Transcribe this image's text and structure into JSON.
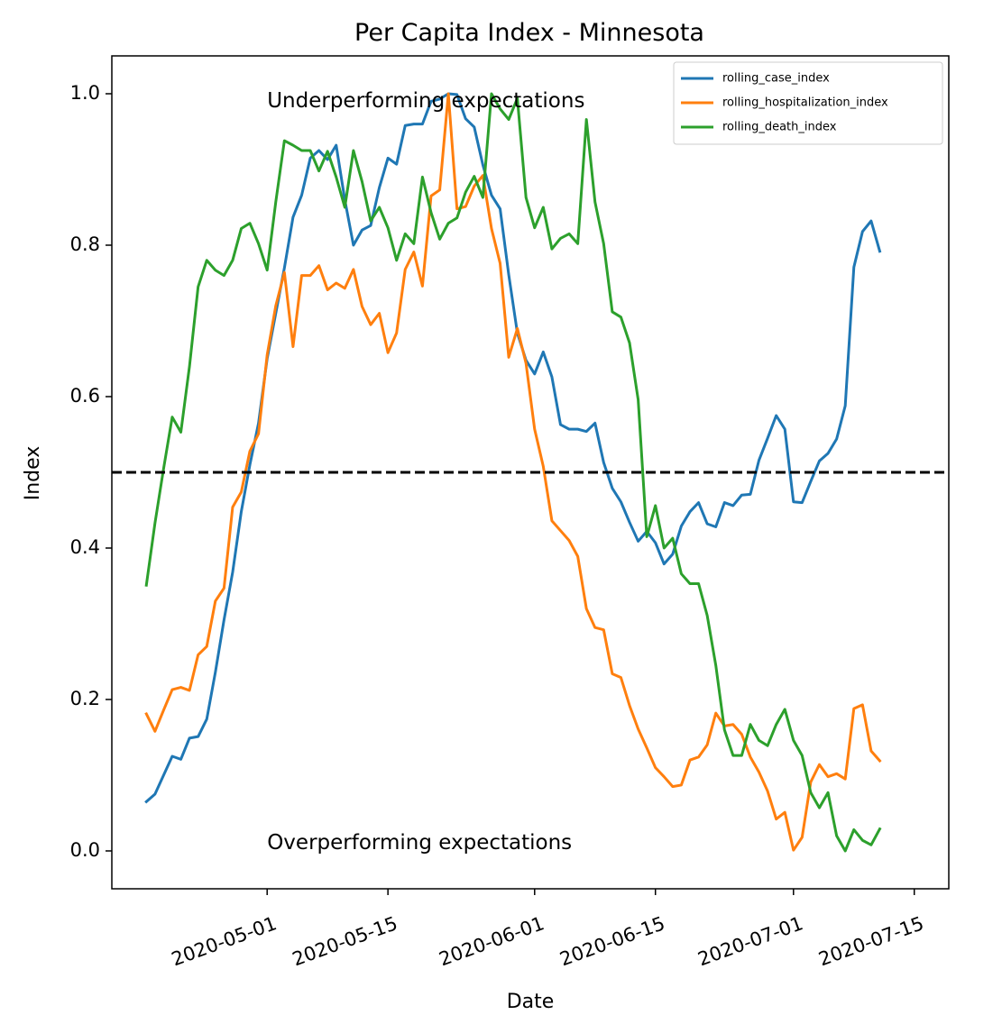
{
  "chart_data": {
    "type": "line",
    "title": "Per Capita Index - Minnesota",
    "xlabel": "Date",
    "ylabel": "Index",
    "x_start": "2020-04-17",
    "x_step_days": 1,
    "xlim": [
      "2020-04-13",
      "2020-07-19"
    ],
    "ylim": [
      -0.05,
      1.05
    ],
    "x_ticks": [
      "2020-05-01",
      "2020-05-15",
      "2020-06-01",
      "2020-06-15",
      "2020-07-01",
      "2020-07-15"
    ],
    "y_ticks": [
      0.0,
      0.2,
      0.4,
      0.6,
      0.8,
      1.0
    ],
    "y_tick_labels": [
      "0.0",
      "0.2",
      "0.4",
      "0.6",
      "0.8",
      "1.0"
    ],
    "grid": false,
    "legend_position": "top-right",
    "reference_line": {
      "y": 0.5,
      "style": "dashed",
      "color": "#000000"
    },
    "annotations": [
      {
        "text": "Underperforming expectations",
        "x": "2020-05-01",
        "y": 0.99
      },
      {
        "text": "Overperforming expectations",
        "x": "2020-05-01",
        "y": 0.01
      }
    ],
    "series": [
      {
        "name": "rolling_case_index",
        "color": "#1f77b4",
        "values": [
          0.065,
          0.075,
          0.1,
          0.125,
          0.121,
          0.149,
          0.151,
          0.174,
          0.236,
          0.305,
          0.368,
          0.448,
          0.51,
          0.565,
          0.65,
          0.71,
          0.77,
          0.837,
          0.866,
          0.915,
          0.925,
          0.913,
          0.932,
          0.86,
          0.8,
          0.82,
          0.826,
          0.876,
          0.915,
          0.907,
          0.958,
          0.96,
          0.96,
          0.99,
          0.993,
          1.0,
          0.999,
          0.967,
          0.956,
          0.906,
          0.866,
          0.848,
          0.761,
          0.684,
          0.648,
          0.63,
          0.659,
          0.626,
          0.563,
          0.557,
          0.557,
          0.554,
          0.565,
          0.513,
          0.479,
          0.461,
          0.434,
          0.409,
          0.422,
          0.407,
          0.379,
          0.392,
          0.429,
          0.448,
          0.46,
          0.432,
          0.428,
          0.46,
          0.456,
          0.47,
          0.471,
          0.516,
          0.545,
          0.575,
          0.557,
          0.461,
          0.46,
          0.488,
          0.515,
          0.525,
          0.544,
          0.588,
          0.771,
          0.818,
          0.832,
          0.792
        ]
      },
      {
        "name": "rolling_hospitalization_index",
        "color": "#ff7f0e",
        "values": [
          0.181,
          0.158,
          0.186,
          0.213,
          0.216,
          0.212,
          0.259,
          0.27,
          0.33,
          0.347,
          0.454,
          0.474,
          0.528,
          0.551,
          0.655,
          0.72,
          0.764,
          0.666,
          0.76,
          0.76,
          0.773,
          0.741,
          0.75,
          0.743,
          0.768,
          0.719,
          0.695,
          0.71,
          0.658,
          0.684,
          0.768,
          0.791,
          0.746,
          0.865,
          0.873,
          1.0,
          0.848,
          0.851,
          0.878,
          0.892,
          0.822,
          0.776,
          0.652,
          0.69,
          0.644,
          0.557,
          0.508,
          0.436,
          0.423,
          0.41,
          0.389,
          0.32,
          0.295,
          0.292,
          0.234,
          0.229,
          0.192,
          0.161,
          0.136,
          0.11,
          0.098,
          0.085,
          0.087,
          0.12,
          0.124,
          0.14,
          0.182,
          0.165,
          0.167,
          0.154,
          0.124,
          0.104,
          0.079,
          0.042,
          0.051,
          0.001,
          0.018,
          0.091,
          0.114,
          0.098,
          0.102,
          0.095,
          0.188,
          0.193,
          0.132,
          0.119
        ]
      },
      {
        "name": "rolling_death_index",
        "color": "#2ca02c",
        "values": [
          0.351,
          0.433,
          0.505,
          0.573,
          0.553,
          0.64,
          0.745,
          0.78,
          0.767,
          0.76,
          0.78,
          0.822,
          0.829,
          0.802,
          0.767,
          0.857,
          0.938,
          0.932,
          0.925,
          0.925,
          0.898,
          0.924,
          0.89,
          0.85,
          0.925,
          0.884,
          0.832,
          0.85,
          0.823,
          0.78,
          0.815,
          0.802,
          0.89,
          0.843,
          0.808,
          0.829,
          0.836,
          0.87,
          0.891,
          0.863,
          1.0,
          0.98,
          0.966,
          0.994,
          0.863,
          0.823,
          0.85,
          0.795,
          0.809,
          0.815,
          0.802,
          0.966,
          0.857,
          0.802,
          0.712,
          0.705,
          0.671,
          0.596,
          0.415,
          0.456,
          0.4,
          0.413,
          0.366,
          0.353,
          0.353,
          0.311,
          0.245,
          0.16,
          0.126,
          0.126,
          0.167,
          0.146,
          0.139,
          0.167,
          0.187,
          0.146,
          0.126,
          0.077,
          0.057,
          0.077,
          0.02,
          0.0,
          0.028,
          0.014,
          0.008,
          0.029
        ]
      }
    ]
  }
}
